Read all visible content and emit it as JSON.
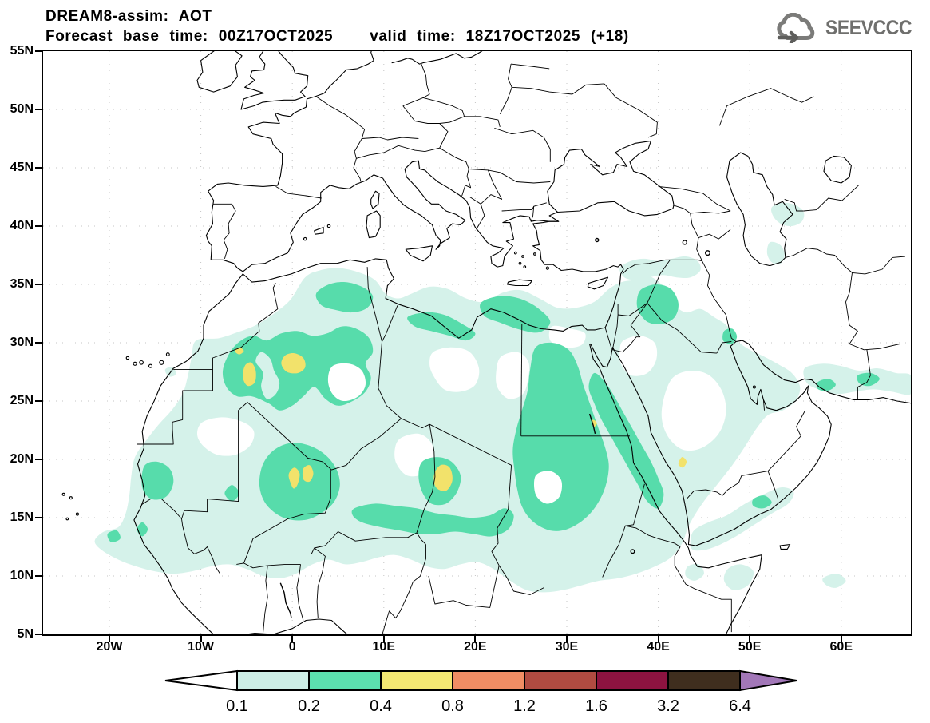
{
  "title": {
    "line1": "DREAM8-assim: AOT",
    "line2_left": "Forecast base time: 00Z17OCT2025",
    "line2_right": "valid time: 18Z17OCT2025 (+18)"
  },
  "logo": {
    "text": "SEEVCCC"
  },
  "map": {
    "y_tick_labels": [
      "55N",
      "50N",
      "45N",
      "40N",
      "35N",
      "30N",
      "25N",
      "20N",
      "15N",
      "10N",
      "5N"
    ],
    "y_tick_lats": [
      55,
      50,
      45,
      40,
      35,
      30,
      25,
      20,
      15,
      10,
      5
    ],
    "x_tick_labels": [
      "20W",
      "10W",
      "0",
      "10E",
      "20E",
      "30E",
      "40E",
      "50E",
      "60E"
    ],
    "x_tick_lons": [
      -20,
      -10,
      0,
      10,
      20,
      30,
      40,
      50,
      60
    ]
  },
  "legend": {
    "values": [
      "0.1",
      "0.2",
      "0.4",
      "0.8",
      "1.2",
      "1.6",
      "3.2",
      "6.4"
    ],
    "cell_colors": [
      "#cdeee6",
      "#5ce0af",
      "#f4e873",
      "#f08d64",
      "#b04b41",
      "#8d1340",
      "#3f2e1e"
    ],
    "left_arrow_color": "#ffffff",
    "right_arrow_color": "#a277b8"
  },
  "colors": {
    "fill_light": "#d5f2ea",
    "fill_medium": "#57dcab",
    "fill_high": "#f2e26b",
    "coast": "#000000",
    "grid": "#c4c4c4",
    "logo_gray": "#7b7b79"
  }
}
